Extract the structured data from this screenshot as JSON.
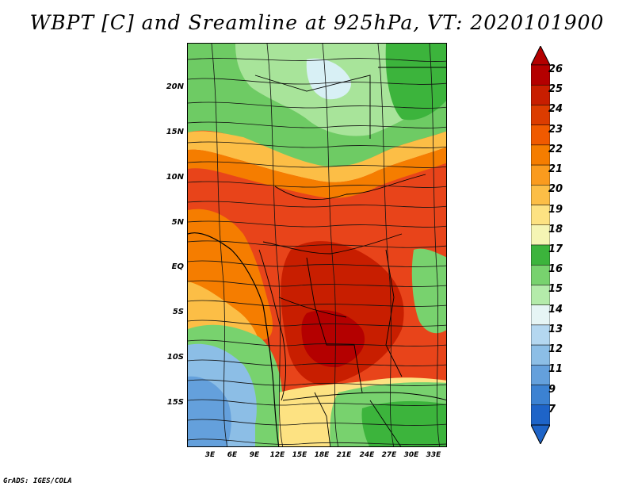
{
  "title": "WBPT [C] and Sreamline at 925hPa, VT: 2020101900",
  "footer": "GrADS: IGES/COLA",
  "y_axis": {
    "labels": [
      "20N",
      "15N",
      "10N",
      "5N",
      "EQ",
      "5S",
      "10S",
      "15S"
    ]
  },
  "x_axis": {
    "labels": [
      "3E",
      "6E",
      "9E",
      "12E",
      "15E",
      "18E",
      "21E",
      "24E",
      "27E",
      "30E",
      "33E"
    ]
  },
  "colorbar": {
    "labels": [
      "26",
      "25",
      "24",
      "23",
      "22",
      "21",
      "20",
      "19",
      "18",
      "17",
      "16",
      "15",
      "14",
      "13",
      "12",
      "11",
      "9",
      "7"
    ],
    "colors": [
      "#b40000",
      "#c81e00",
      "#dc3c00",
      "#f05a00",
      "#f57d00",
      "#fa9b1e",
      "#fcbe46",
      "#fde282",
      "#f5f5b4",
      "#3cb43c",
      "#78d26e",
      "#b4ebaa",
      "#e6f5f5",
      "#b4d7f0",
      "#8cbee6",
      "#64a0dc",
      "#3c82d2",
      "#1e64c8"
    ]
  }
}
